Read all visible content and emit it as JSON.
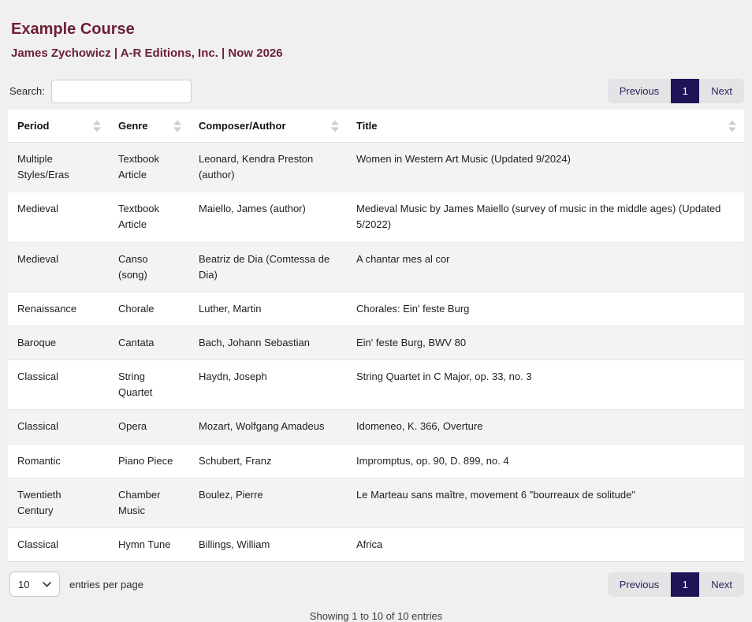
{
  "header": {
    "title": "Example Course",
    "subtitle": "James Zychowicz | A-R Editions, Inc. | Now 2026",
    "accent_color": "#6e2034"
  },
  "search": {
    "label": "Search:",
    "value": "",
    "placeholder": ""
  },
  "pagination": {
    "previous_label": "Previous",
    "current_page": "1",
    "next_label": "Next",
    "active_bg": "#1e1456",
    "link_color": "#29245e"
  },
  "table": {
    "columns": [
      {
        "label": "Period"
      },
      {
        "label": "Genre"
      },
      {
        "label": "Composer/Author"
      },
      {
        "label": "Title"
      }
    ],
    "rows": [
      {
        "period": "Multiple Styles/Eras",
        "genre": "Textbook Article",
        "composer": "Leonard, Kendra Preston (author)",
        "title": "Women in Western Art Music (Updated 9/2024)"
      },
      {
        "period": "Medieval",
        "genre": "Textbook Article",
        "composer": "Maiello, James (author)",
        "title": "Medieval Music by James Maiello (survey of music in the middle ages) (Updated 5/2022)"
      },
      {
        "period": "Medieval",
        "genre": "Canso (song)",
        "composer": "Beatriz de Dia (Comtessa de Dia)",
        "title": "A chantar mes al cor"
      },
      {
        "period": "Renaissance",
        "genre": "Chorale",
        "composer": "Luther, Martin",
        "title": "Chorales: Ein' feste Burg"
      },
      {
        "period": "Baroque",
        "genre": "Cantata",
        "composer": "Bach, Johann Sebastian",
        "title": "Ein' feste Burg, BWV 80"
      },
      {
        "period": "Classical",
        "genre": "String Quartet",
        "composer": "Haydn, Joseph",
        "title": "String Quartet in C Major, op. 33, no. 3"
      },
      {
        "period": "Classical",
        "genre": "Opera",
        "composer": "Mozart, Wolfgang Amadeus",
        "title": "Idomeneo, K. 366, Overture"
      },
      {
        "period": "Romantic",
        "genre": "Piano Piece",
        "composer": "Schubert, Franz",
        "title": "Impromptus, op. 90, D. 899, no. 4"
      },
      {
        "period": "Twentieth Century",
        "genre": "Chamber Music",
        "composer": "Boulez, Pierre",
        "title": "Le Marteau sans maître, movement 6 \"bourreaux de solitude\""
      },
      {
        "period": "Classical",
        "genre": "Hymn Tune",
        "composer": "Billings, William",
        "title": "Africa"
      }
    ]
  },
  "footer": {
    "page_size": "10",
    "entries_per_page_label": "entries per page",
    "showing_text": "Showing 1 to 10 of 10 entries"
  }
}
